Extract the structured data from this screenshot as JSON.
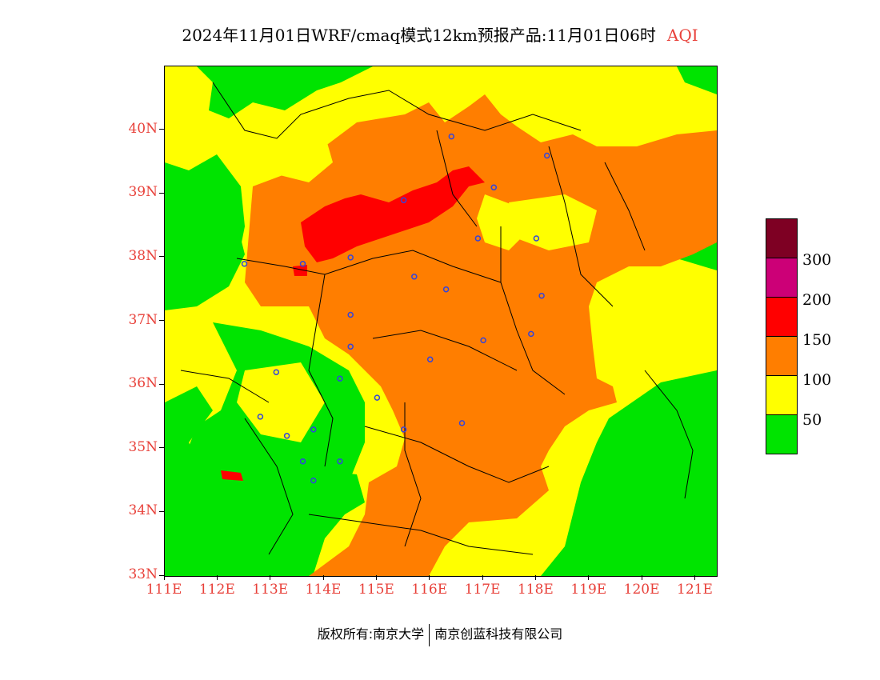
{
  "title": {
    "main": "2024年11月01日WRF/cmaq模式12km预报产品:11月01日06时",
    "aqi": "AQI"
  },
  "axes": {
    "y_ticks": [
      "40N",
      "39N",
      "38N",
      "37N",
      "36N",
      "35N",
      "34N",
      "33N"
    ],
    "x_ticks": [
      "111E",
      "112E",
      "113E",
      "114E",
      "115E",
      "116E",
      "117E",
      "118E",
      "119E",
      "120E",
      "121E"
    ],
    "lon_range": [
      111,
      121.4
    ],
    "lat_range": [
      33,
      41
    ]
  },
  "legend": {
    "labels": [
      "300",
      "200",
      "150",
      "100",
      "50"
    ],
    "colors": [
      "#7e0023",
      "#cc0077",
      "#ff0000",
      "#ff7e00",
      "#ffff00",
      "#00e400"
    ],
    "levels": [
      "300+",
      "200-300",
      "150-200",
      "100-150",
      "50-100",
      "0-50"
    ]
  },
  "copyright": {
    "left": "版权所有:南京大学",
    "right": "南京创蓝科技有限公司"
  },
  "map": {
    "region": "North China Plain",
    "colors": {
      "good": "#00e400",
      "moderate": "#ffff00",
      "usg": "#ff7e00",
      "unhealthy": "#ff0000",
      "station": "#3344dd"
    },
    "stations": [
      {
        "lon": 116.4,
        "lat": 39.9
      },
      {
        "lon": 117.2,
        "lat": 39.1
      },
      {
        "lon": 115.5,
        "lat": 38.9
      },
      {
        "lon": 114.5,
        "lat": 38.0
      },
      {
        "lon": 113.6,
        "lat": 37.9
      },
      {
        "lon": 112.5,
        "lat": 37.9
      },
      {
        "lon": 116.3,
        "lat": 37.5
      },
      {
        "lon": 117.0,
        "lat": 36.7
      },
      {
        "lon": 118.1,
        "lat": 37.4
      },
      {
        "lon": 115.0,
        "lat": 35.8
      },
      {
        "lon": 113.6,
        "lat": 34.8
      },
      {
        "lon": 114.3,
        "lat": 34.8
      },
      {
        "lon": 116.6,
        "lat": 35.4
      },
      {
        "lon": 114.5,
        "lat": 36.6
      },
      {
        "lon": 118.2,
        "lat": 39.6
      },
      {
        "lon": 116.9,
        "lat": 38.3
      },
      {
        "lon": 115.7,
        "lat": 37.7
      },
      {
        "lon": 114.5,
        "lat": 37.1
      },
      {
        "lon": 115.5,
        "lat": 35.3
      },
      {
        "lon": 113.1,
        "lat": 36.2
      },
      {
        "lon": 112.8,
        "lat": 35.5
      },
      {
        "lon": 114.3,
        "lat": 36.1
      },
      {
        "lon": 113.3,
        "lat": 35.2
      },
      {
        "lon": 113.8,
        "lat": 35.3
      },
      {
        "lon": 116.0,
        "lat": 36.4
      },
      {
        "lon": 117.9,
        "lat": 36.8
      },
      {
        "lon": 118.0,
        "lat": 38.3
      },
      {
        "lon": 113.8,
        "lat": 34.5
      }
    ]
  }
}
